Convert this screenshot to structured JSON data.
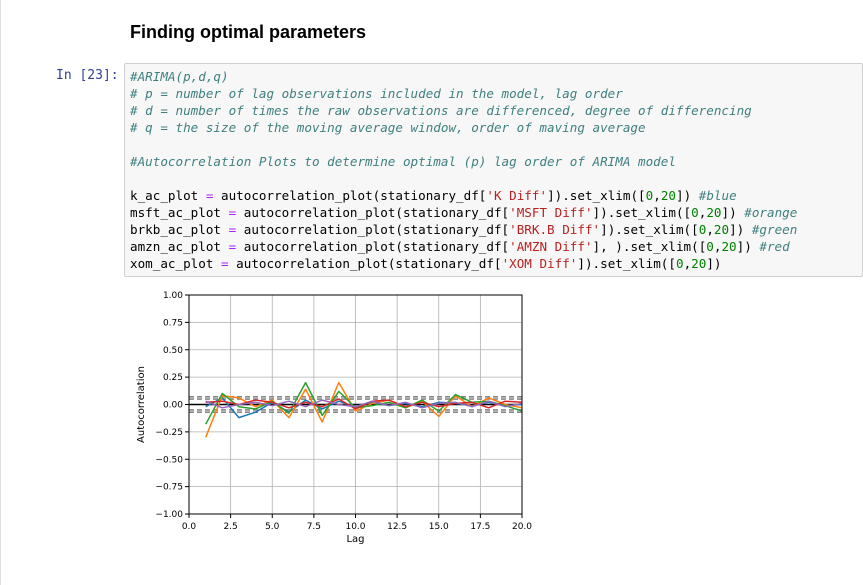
{
  "heading": "Finding optimal parameters",
  "cell": {
    "prompt": "In [23]:",
    "lines": [
      [
        {
          "t": "#ARIMA(p,d,q)",
          "c": "cm"
        }
      ],
      [
        {
          "t": "# p = number of lag observations included in the model, lag order",
          "c": "cm"
        }
      ],
      [
        {
          "t": "# d = number of times the raw observations are differenced, degree of differencing",
          "c": "cm"
        }
      ],
      [
        {
          "t": "# q = the size of the moving average window, order of maving average",
          "c": "cm"
        }
      ],
      [
        {
          "t": "",
          "c": ""
        }
      ],
      [
        {
          "t": "#Autocorrelation Plots to determine optimal (p) lag order of ARIMA model",
          "c": "cm"
        }
      ],
      [
        {
          "t": "",
          "c": ""
        }
      ],
      [
        {
          "t": "k_ac_plot ",
          "c": ""
        },
        {
          "t": "=",
          "c": "op"
        },
        {
          "t": " autocorrelation_plot(stationary_df[",
          "c": ""
        },
        {
          "t": "'K Diff'",
          "c": "st"
        },
        {
          "t": "]).set_xlim([",
          "c": ""
        },
        {
          "t": "0",
          "c": "nm"
        },
        {
          "t": ",",
          "c": ""
        },
        {
          "t": "20",
          "c": "nm"
        },
        {
          "t": "]) ",
          "c": ""
        },
        {
          "t": "#blue",
          "c": "cm"
        }
      ],
      [
        {
          "t": "msft_ac_plot ",
          "c": ""
        },
        {
          "t": "=",
          "c": "op"
        },
        {
          "t": " autocorrelation_plot(stationary_df[",
          "c": ""
        },
        {
          "t": "'MSFT Diff'",
          "c": "st"
        },
        {
          "t": "]).set_xlim([",
          "c": ""
        },
        {
          "t": "0",
          "c": "nm"
        },
        {
          "t": ",",
          "c": ""
        },
        {
          "t": "20",
          "c": "nm"
        },
        {
          "t": "]) ",
          "c": ""
        },
        {
          "t": "#orange",
          "c": "cm"
        }
      ],
      [
        {
          "t": "brkb_ac_plot ",
          "c": ""
        },
        {
          "t": "=",
          "c": "op"
        },
        {
          "t": " autocorrelation_plot(stationary_df[",
          "c": ""
        },
        {
          "t": "'BRK.B Diff'",
          "c": "st"
        },
        {
          "t": "]).set_xlim([",
          "c": ""
        },
        {
          "t": "0",
          "c": "nm"
        },
        {
          "t": ",",
          "c": ""
        },
        {
          "t": "20",
          "c": "nm"
        },
        {
          "t": "]) ",
          "c": ""
        },
        {
          "t": "#green",
          "c": "cm"
        }
      ],
      [
        {
          "t": "amzn_ac_plot ",
          "c": ""
        },
        {
          "t": "=",
          "c": "op"
        },
        {
          "t": " autocorrelation_plot(stationary_df[",
          "c": ""
        },
        {
          "t": "'AMZN Diff'",
          "c": "st"
        },
        {
          "t": "], ).set_xlim([",
          "c": ""
        },
        {
          "t": "0",
          "c": "nm"
        },
        {
          "t": ",",
          "c": ""
        },
        {
          "t": "20",
          "c": "nm"
        },
        {
          "t": "]) ",
          "c": ""
        },
        {
          "t": "#red",
          "c": "cm"
        }
      ],
      [
        {
          "t": "xom_ac_plot ",
          "c": ""
        },
        {
          "t": "=",
          "c": "op"
        },
        {
          "t": " autocorrelation_plot(stationary_df[",
          "c": ""
        },
        {
          "t": "'XOM Diff'",
          "c": "st"
        },
        {
          "t": "]).set_xlim([",
          "c": ""
        },
        {
          "t": "0",
          "c": "nm"
        },
        {
          "t": ",",
          "c": ""
        },
        {
          "t": "20",
          "c": "nm"
        },
        {
          "t": "])",
          "c": ""
        }
      ]
    ]
  },
  "chart_data": {
    "type": "line",
    "xlabel": "Lag",
    "ylabel": "Autocorrelation",
    "xlim": [
      0,
      20
    ],
    "ylim": [
      -1.0,
      1.0
    ],
    "xticks": [
      "0.0",
      "2.5",
      "5.0",
      "7.5",
      "10.0",
      "12.5",
      "15.0",
      "17.5",
      "20.0"
    ],
    "yticks": [
      "1.00",
      "0.75",
      "0.50",
      "0.25",
      "0.00",
      "−0.25",
      "−0.50",
      "−0.75",
      "−1.00"
    ],
    "xtick_values": [
      0,
      2.5,
      5,
      7.5,
      10,
      12.5,
      15,
      17.5,
      20
    ],
    "ytick_values": [
      1.0,
      0.75,
      0.5,
      0.25,
      0.0,
      -0.25,
      -0.5,
      -0.75,
      -1.0
    ],
    "grid": true,
    "confidence_bands": [
      0.05,
      0.07
    ],
    "x": [
      1,
      2,
      3,
      4,
      5,
      6,
      7,
      8,
      9,
      10,
      11,
      12,
      13,
      14,
      15,
      16,
      17,
      18,
      19,
      20
    ],
    "series": [
      {
        "color": "#1f77b4",
        "values": [
          -0.02,
          0.06,
          -0.12,
          -0.07,
          0.02,
          -0.07,
          0.04,
          -0.04,
          0.03,
          -0.02,
          0.02,
          -0.01,
          0.01,
          -0.02,
          0.02,
          0.01,
          -0.01,
          0.02,
          -0.01,
          0.0
        ]
      },
      {
        "color": "#ff7f0e",
        "values": [
          -0.3,
          0.08,
          0.06,
          -0.02,
          0.04,
          -0.12,
          0.14,
          -0.16,
          0.2,
          -0.06,
          0.01,
          0.04,
          -0.03,
          0.03,
          -0.11,
          0.08,
          -0.02,
          0.06,
          0.0,
          -0.03
        ]
      },
      {
        "color": "#2ca02c",
        "values": [
          -0.18,
          0.1,
          -0.02,
          -0.04,
          0.03,
          -0.08,
          0.2,
          -0.1,
          0.12,
          -0.03,
          -0.01,
          0.02,
          -0.03,
          0.04,
          -0.06,
          0.09,
          0.02,
          0.03,
          -0.01,
          -0.06
        ]
      },
      {
        "color": "#d62728",
        "values": [
          0.02,
          0.03,
          0.0,
          0.04,
          0.02,
          -0.03,
          0.02,
          -0.02,
          0.05,
          -0.04,
          0.03,
          0.04,
          -0.02,
          0.02,
          -0.02,
          0.01,
          0.02,
          -0.03,
          0.03,
          0.02
        ]
      },
      {
        "color": "#9467bd",
        "values": [
          0.03,
          -0.03,
          0.0,
          0.02,
          -0.01,
          0.03,
          -0.02,
          0.04,
          0.0,
          -0.02,
          0.03,
          -0.01,
          0.02,
          -0.03,
          0.01,
          0.02,
          -0.02,
          0.03,
          -0.02,
          0.01
        ]
      }
    ]
  }
}
